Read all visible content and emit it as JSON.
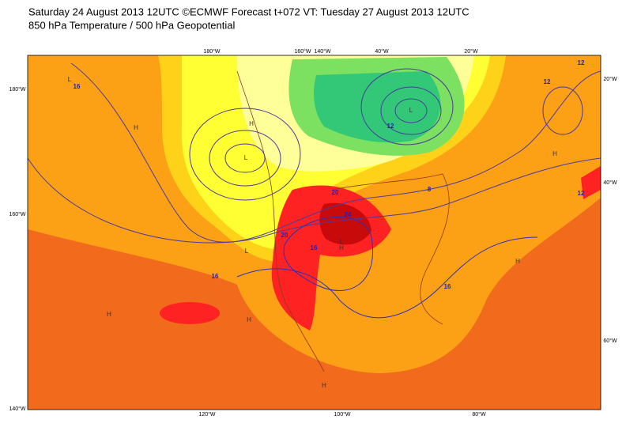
{
  "header": {
    "line1": "Saturday 24 August 2013 12UTC ©ECMWF Forecast t+072 VT: Tuesday 27 August 2013 12UTC",
    "line2": "850 hPa Temperature / 500 hPa Geopotential"
  },
  "map": {
    "top_labels": [
      "180°W",
      "160°W",
      "140°W",
      "40°W",
      "20°W"
    ],
    "bottom_labels": [
      "120°W",
      "100°W",
      "80°W"
    ],
    "left_labels": [
      "180°W",
      "160°W",
      "140°W"
    ],
    "right_labels": [
      "20°W",
      "40°W",
      "60°W"
    ],
    "contour_labels": [
      "16",
      "12",
      "12",
      "16",
      "20",
      "24",
      "20",
      "16",
      "16",
      "12",
      "8",
      "12"
    ],
    "pressure_centers": [
      "L",
      "H",
      "L",
      "H",
      "L",
      "H",
      "H",
      "L",
      "H",
      "H",
      "H",
      "L",
      "H"
    ]
  }
}
